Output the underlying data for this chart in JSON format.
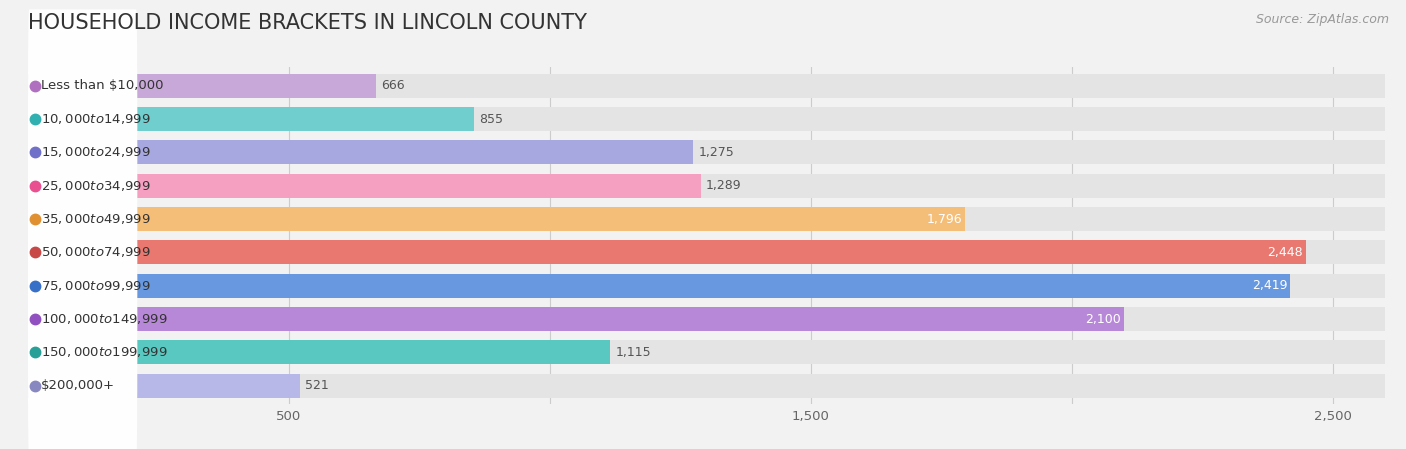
{
  "title": "HOUSEHOLD INCOME BRACKETS IN LINCOLN COUNTY",
  "source": "Source: ZipAtlas.com",
  "categories": [
    "Less than $10,000",
    "$10,000 to $14,999",
    "$15,000 to $24,999",
    "$25,000 to $34,999",
    "$35,000 to $49,999",
    "$50,000 to $74,999",
    "$75,000 to $99,999",
    "$100,000 to $149,999",
    "$150,000 to $199,999",
    "$200,000+"
  ],
  "values": [
    666,
    855,
    1275,
    1289,
    1796,
    2448,
    2419,
    2100,
    1115,
    521
  ],
  "bar_colors": [
    "#c8a8d8",
    "#70cece",
    "#a8a8e0",
    "#f5a0c0",
    "#f5be78",
    "#e87870",
    "#6898e0",
    "#b888d8",
    "#58c8c0",
    "#b8b8e8"
  ],
  "dot_colors": [
    "#b070c0",
    "#30b0b0",
    "#7070c8",
    "#e85090",
    "#e09030",
    "#c84848",
    "#3870c8",
    "#9050c0",
    "#28a098",
    "#8888c0"
  ],
  "label_colors_inside": [
    false,
    false,
    false,
    false,
    true,
    true,
    true,
    true,
    false,
    false
  ],
  "xlim_max": 2600,
  "xticks": [
    500,
    1000,
    1500,
    2000,
    2500
  ],
  "xtick_labels": [
    "500",
    "",
    "1,500",
    "",
    "2,500"
  ],
  "background_color": "#f2f2f2",
  "bar_bg_color": "#e4e4e4",
  "title_fontsize": 15,
  "label_fontsize": 9.5,
  "value_fontsize": 9,
  "source_fontsize": 9
}
